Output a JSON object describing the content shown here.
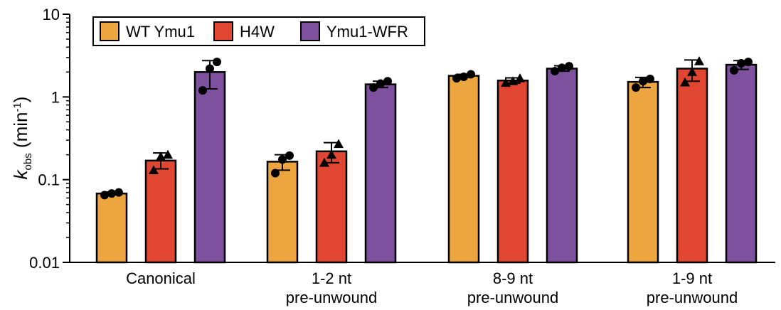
{
  "chart_data": {
    "type": "bar",
    "yscale": "log",
    "ylim": [
      0.01,
      10
    ],
    "yticks": [
      "10",
      "1",
      "0.1",
      "0.01"
    ],
    "ylabel": {
      "main": "k",
      "sub": "obs",
      "unit": " (min",
      "sup": "-1",
      "close": ")"
    },
    "xlabel": "",
    "categories": [
      [
        "Canonical"
      ],
      [
        "1-2 nt",
        "pre-unwound"
      ],
      [
        "8-9 nt",
        "pre-unwound"
      ],
      [
        "1-9 nt",
        "pre-unwound"
      ]
    ],
    "legend": {
      "placement": "top-left"
    },
    "series": [
      {
        "name": "WT Ymu1",
        "color": "#EDA63F",
        "marker": "circle",
        "values": [
          0.068,
          0.165,
          1.8,
          1.52
        ],
        "error_low": [
          0.066,
          0.13,
          1.72,
          1.3
        ],
        "error_high": [
          0.071,
          0.2,
          1.88,
          1.72
        ],
        "points": [
          [
            0.065,
            0.068,
            0.07
          ],
          [
            0.12,
            0.175,
            0.195
          ],
          [
            1.68,
            1.75,
            1.88
          ],
          [
            1.3,
            1.55,
            1.65
          ]
        ]
      },
      {
        "name": "H4W",
        "color": "#E04632",
        "marker": "triangle",
        "values": [
          0.17,
          0.22,
          1.58,
          2.2
        ],
        "error_low": [
          0.135,
          0.16,
          1.47,
          1.55
        ],
        "error_high": [
          0.21,
          0.28,
          1.7,
          2.8
        ],
        "points": [
          [
            0.13,
            0.19,
            0.2
          ],
          [
            0.16,
            0.2,
            0.27
          ],
          [
            1.48,
            1.55,
            1.68
          ],
          [
            1.5,
            2.0,
            2.7
          ]
        ]
      },
      {
        "name": "Ymu1-WFR",
        "color": "#7E519E",
        "marker": "circle",
        "values": [
          2.0,
          1.42,
          2.2,
          2.45
        ],
        "error_low": [
          1.25,
          1.3,
          2.05,
          2.15
        ],
        "error_high": [
          2.75,
          1.55,
          2.38,
          2.75
        ],
        "points": [
          [
            1.2,
            2.2,
            2.65
          ],
          [
            1.3,
            1.45,
            1.55
          ],
          [
            2.05,
            2.25,
            2.35
          ],
          [
            2.1,
            2.55,
            2.65
          ]
        ]
      }
    ]
  }
}
